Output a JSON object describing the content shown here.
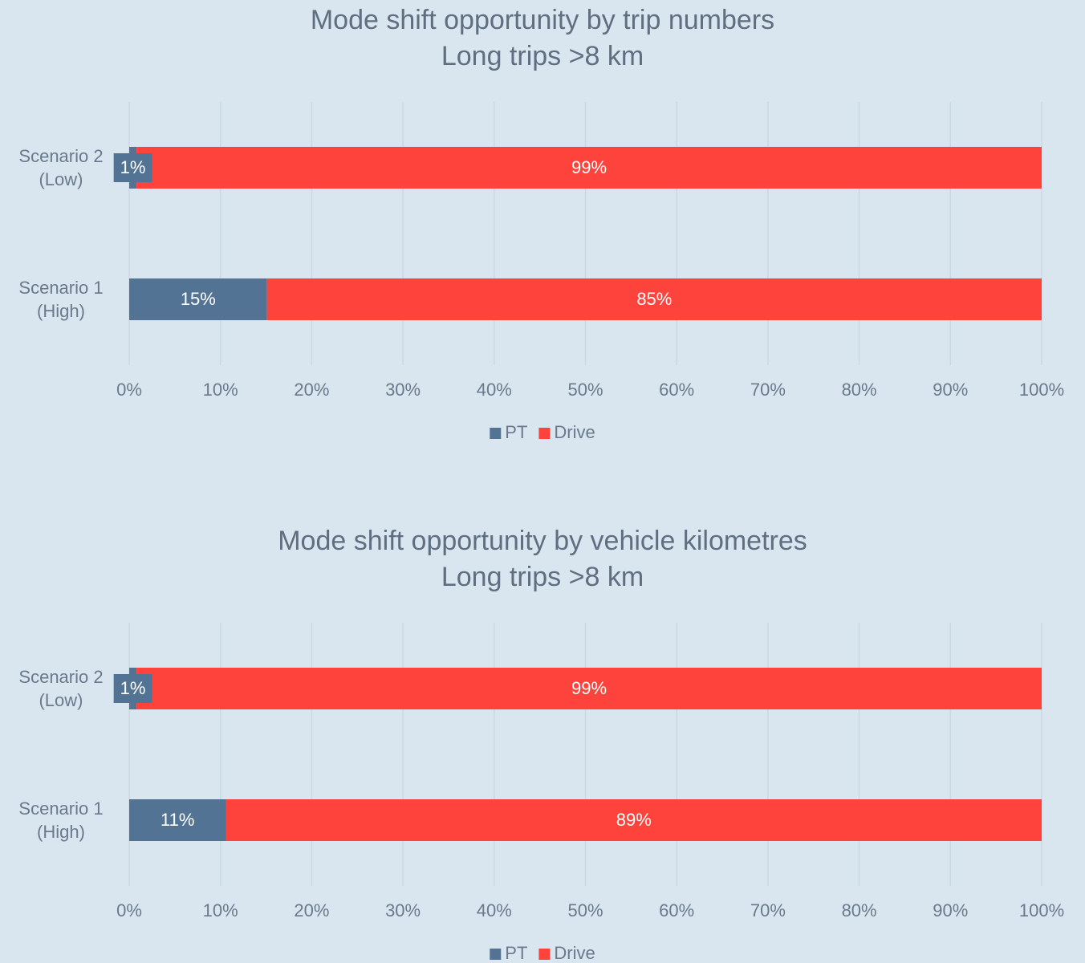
{
  "chart_data": [
    {
      "type": "stacked_barh",
      "title": "Mode shift opportunity by trip numbers",
      "subtitle": "Long trips >8 km",
      "categories": [
        "Scenario 2 (Low)",
        "Scenario 1 (High)"
      ],
      "series": [
        {
          "name": "PT",
          "color": "#527394",
          "values": [
            0.8,
            15.1
          ],
          "value_labels": [
            "1%",
            "15%"
          ]
        },
        {
          "name": "Drive",
          "color": "#fd433b",
          "values": [
            99.2,
            84.9
          ],
          "value_labels": [
            "99%",
            "85%"
          ]
        }
      ],
      "xlim": [
        0,
        100
      ],
      "xticks": [
        {
          "value": 0,
          "label": "0%"
        },
        {
          "value": 10,
          "label": "10%"
        },
        {
          "value": 20,
          "label": "20%"
        },
        {
          "value": 30,
          "label": "30%"
        },
        {
          "value": 40,
          "label": "40%"
        },
        {
          "value": 50,
          "label": "50%"
        },
        {
          "value": 60,
          "label": "60%"
        },
        {
          "value": 70,
          "label": "70%"
        },
        {
          "value": 80,
          "label": "80%"
        },
        {
          "value": 90,
          "label": "90%"
        },
        {
          "value": 100,
          "label": "100%"
        }
      ],
      "grid": true,
      "legend": "bottom"
    },
    {
      "type": "stacked_barh",
      "title": "Mode shift opportunity by vehicle kilometres",
      "subtitle": "Long trips >8 km",
      "categories": [
        "Scenario 2 (Low)",
        "Scenario 1 (High)"
      ],
      "series": [
        {
          "name": "PT",
          "color": "#527394",
          "values": [
            0.8,
            10.6
          ],
          "value_labels": [
            "1%",
            "11%"
          ]
        },
        {
          "name": "Drive",
          "color": "#fd433b",
          "values": [
            99.2,
            89.4
          ],
          "value_labels": [
            "99%",
            "89%"
          ]
        }
      ],
      "xlim": [
        0,
        100
      ],
      "xticks": [
        {
          "value": 0,
          "label": "0%"
        },
        {
          "value": 10,
          "label": "10%"
        },
        {
          "value": 20,
          "label": "20%"
        },
        {
          "value": 30,
          "label": "30%"
        },
        {
          "value": 40,
          "label": "40%"
        },
        {
          "value": 50,
          "label": "50%"
        },
        {
          "value": 60,
          "label": "60%"
        },
        {
          "value": 70,
          "label": "70%"
        },
        {
          "value": 80,
          "label": "80%"
        },
        {
          "value": 90,
          "label": "90%"
        },
        {
          "value": 100,
          "label": "100%"
        }
      ],
      "grid": true,
      "legend": "bottom"
    }
  ]
}
